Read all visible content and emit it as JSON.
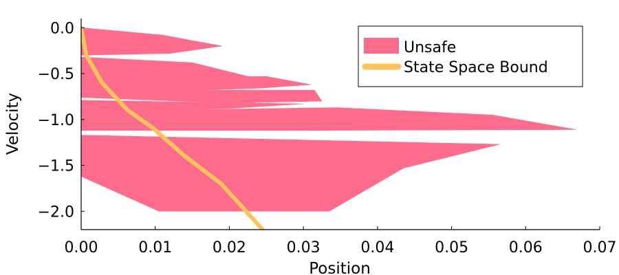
{
  "chart_data": {
    "type": "area",
    "xlabel": "Position",
    "ylabel": "Velocity",
    "xlim": [
      0.0,
      0.07
    ],
    "ylim": [
      -2.2,
      0.1
    ],
    "xticks": [
      0.0,
      0.01,
      0.02,
      0.03,
      0.04,
      0.05,
      0.06,
      0.07
    ],
    "xtick_labels": [
      "0.00",
      "0.01",
      "0.02",
      "0.03",
      "0.04",
      "0.05",
      "0.06",
      "0.07"
    ],
    "yticks": [
      0.0,
      -0.5,
      -1.0,
      -1.5,
      -2.0
    ],
    "ytick_labels": [
      "0.0",
      "−0.5",
      "−1.0",
      "−1.5",
      "−2.0"
    ],
    "grid": false,
    "legend_position": "top-right",
    "series": [
      {
        "name": "Unsafe",
        "kind": "filled-region",
        "color": "#ff6b8a",
        "regions": [
          [
            [
              0.0,
              0.0
            ],
            [
              0.011,
              -0.08
            ],
            [
              0.019,
              -0.2
            ],
            [
              0.012,
              -0.28
            ],
            [
              0.0,
              -0.3
            ]
          ],
          [
            [
              0.0,
              -0.32
            ],
            [
              0.015,
              -0.38
            ],
            [
              0.02,
              -0.48
            ],
            [
              0.024,
              -0.56
            ],
            [
              0.0,
              -0.6
            ]
          ],
          [
            [
              0.0,
              -0.55
            ],
            [
              0.025,
              -0.53
            ],
            [
              0.031,
              -0.62
            ],
            [
              0.024,
              -0.66
            ],
            [
              0.0,
              -0.72
            ]
          ],
          [
            [
              0.0,
              -0.68
            ],
            [
              0.0315,
              -0.68
            ],
            [
              0.0325,
              -0.8
            ],
            [
              0.02,
              -0.82
            ],
            [
              0.0,
              -0.76
            ]
          ],
          [
            [
              0.0,
              -0.79
            ],
            [
              0.03,
              -0.83
            ],
            [
              0.02,
              -0.88
            ],
            [
              0.0,
              -0.92
            ]
          ],
          [
            [
              0.0,
              -0.91
            ],
            [
              0.0345,
              -0.87
            ],
            [
              0.0555,
              -0.95
            ],
            [
              0.0668,
              -1.11
            ],
            [
              0.03,
              -1.12
            ],
            [
              0.0,
              -1.12
            ]
          ],
          [
            [
              0.0,
              -1.17
            ],
            [
              0.0565,
              -1.27
            ],
            [
              0.0435,
              -1.53
            ],
            [
              0.0335,
              -2.0
            ],
            [
              0.0105,
              -2.0
            ],
            [
              0.0,
              -1.62
            ]
          ]
        ]
      },
      {
        "name": "State Space Bound",
        "kind": "line",
        "color": "#f9c45a",
        "x": [
          0.0,
          0.0007,
          0.0028,
          0.0063,
          0.0098,
          0.014,
          0.0189,
          0.0245
        ],
        "y": [
          0.0,
          -0.3,
          -0.6,
          -0.9,
          -1.1,
          -1.4,
          -1.7,
          -2.2
        ]
      }
    ]
  }
}
